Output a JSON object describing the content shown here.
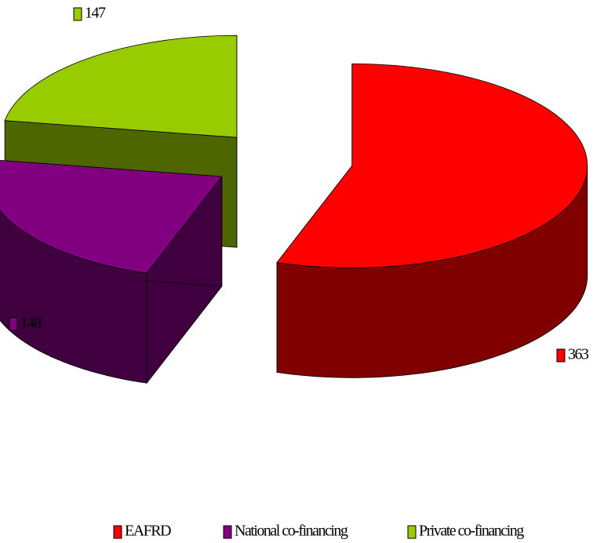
{
  "chart_data": {
    "type": "pie",
    "categories": [
      "EAFRD",
      "National co-financing",
      "Private co-financing"
    ],
    "values": [
      363,
      148,
      147
    ],
    "colors": [
      "#ff0000",
      "#800080",
      "#99cc00"
    ],
    "legend": "bottom"
  }
}
